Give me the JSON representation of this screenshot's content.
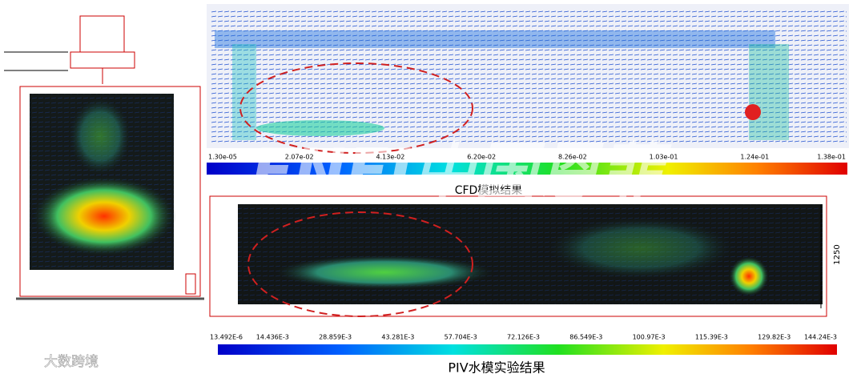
{
  "cfd": {
    "caption": "CFD模拟结果",
    "scale_labels": [
      "1.30e-05",
      "2.07e-02",
      "4.13e-02",
      "6.20e-02",
      "8.26e-02",
      "1.03e-01",
      "1.24e-01",
      "1.38e-01"
    ]
  },
  "piv": {
    "caption": "PIV水模实验结果",
    "dimension": "1250",
    "scale_labels": [
      "13.492E-6",
      "14.436E-3",
      "28.859E-3",
      "43.281E-3",
      "57.704E-3",
      "72.126E-3",
      "86.549E-3",
      "100.97E-3",
      "115.39E-3",
      "129.82E-3",
      "144.24E-3"
    ]
  },
  "watermark": {
    "brand": "ENFI中国恩菲",
    "source": "大数跨境"
  }
}
